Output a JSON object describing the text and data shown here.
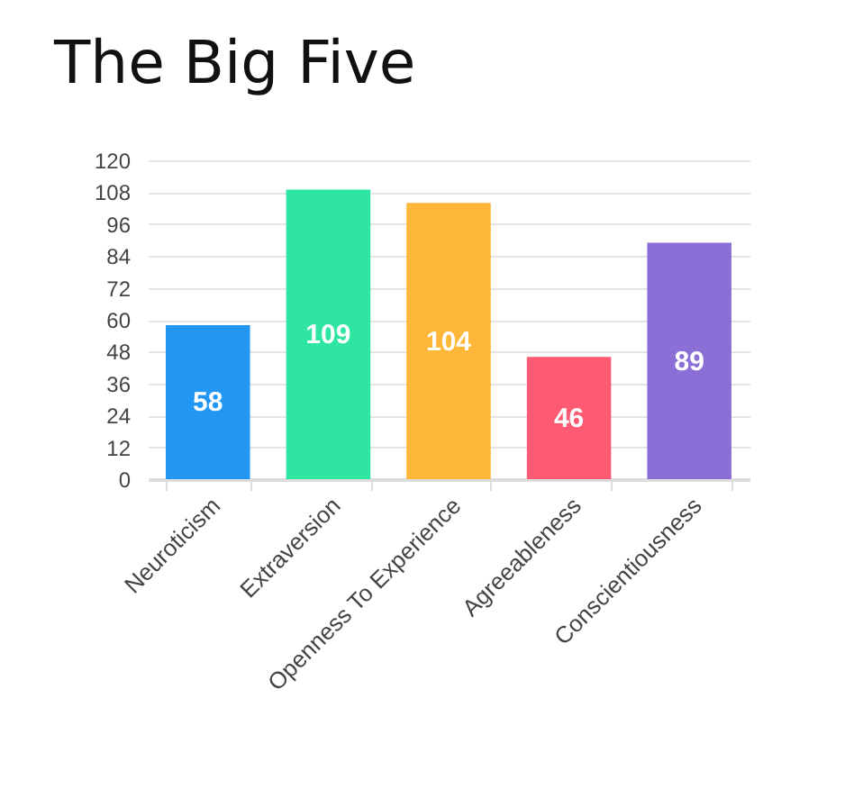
{
  "chart_data": {
    "type": "bar",
    "title": "The Big Five",
    "categories": [
      "Neuroticism",
      "Extraversion",
      "Openness To Experience",
      "Agreeableness",
      "Conscientiousness"
    ],
    "values": [
      58,
      109,
      104,
      46,
      89
    ],
    "colors": [
      "#2196f3",
      "#2ee6a2",
      "#ffb73a",
      "#ff5a74",
      "#8b6fd6"
    ],
    "ylim": [
      0,
      120
    ],
    "yticks": [
      0,
      12,
      24,
      36,
      48,
      60,
      72,
      84,
      96,
      108,
      120
    ],
    "grid": "y",
    "data_labels": true
  }
}
